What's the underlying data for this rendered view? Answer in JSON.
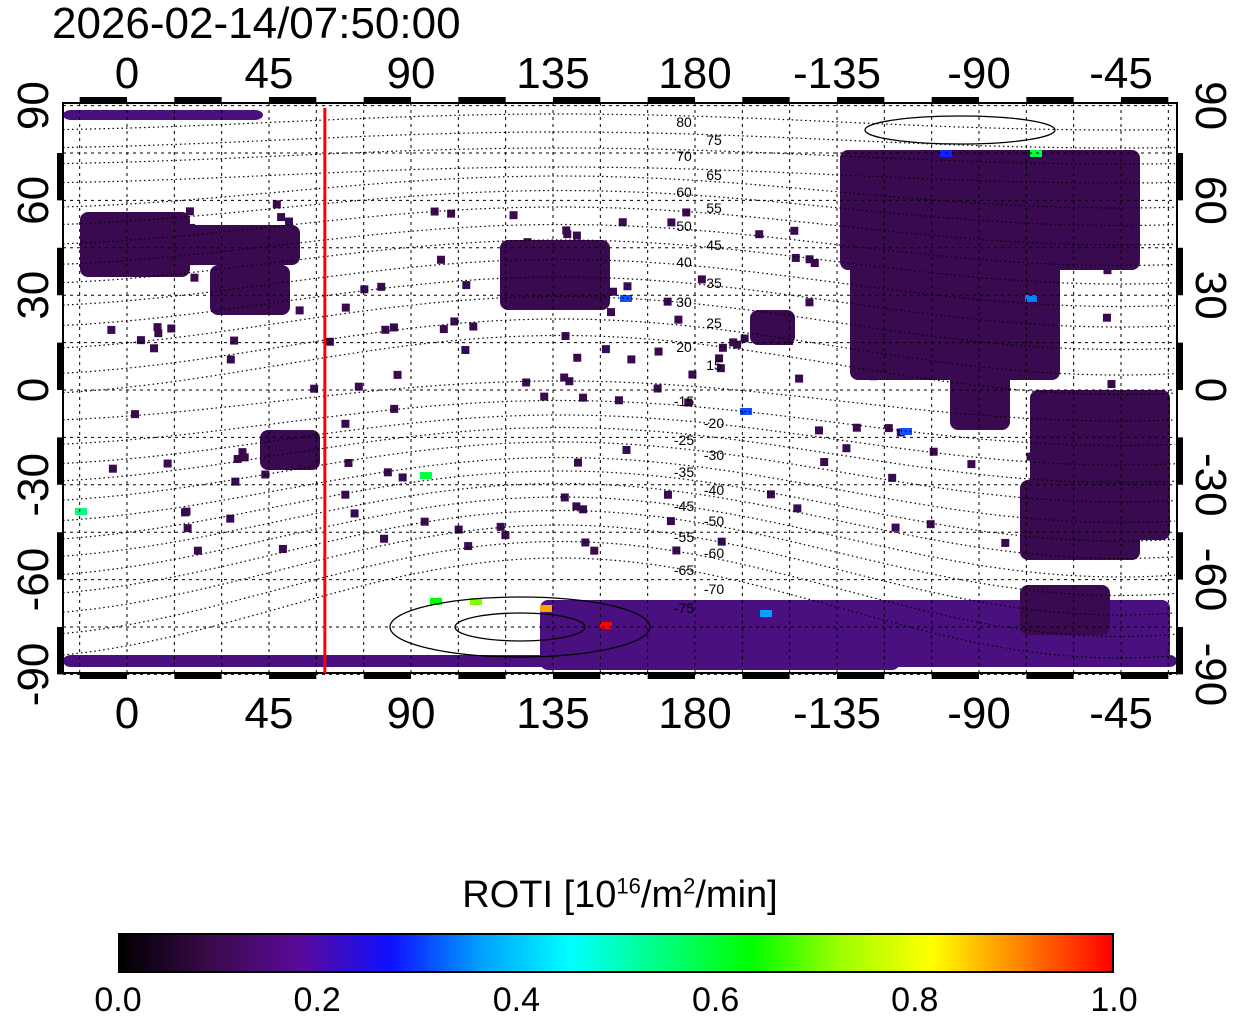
{
  "title": "2026-02-14/07:50:00",
  "map": {
    "top_lon_ticks": [
      "0",
      "45",
      "90",
      "135",
      "180",
      "-135",
      "-90",
      "-45"
    ],
    "bottom_lon_ticks": [
      "0",
      "45",
      "90",
      "135",
      "180",
      "-135",
      "-90",
      "-45"
    ],
    "left_lat_ticks": [
      "90",
      "60",
      "30",
      "0",
      "-30",
      "-60",
      "-90"
    ],
    "right_lat_ticks": [
      "90",
      "60",
      "30",
      "0",
      "-30",
      "-60",
      "-90"
    ],
    "marker_line_lon": 62.7,
    "marker_line_color": "#ff0000",
    "contour_labels_north": [
      "80",
      "75",
      "70",
      "65",
      "60",
      "55",
      "50",
      "45",
      "40",
      "35",
      "30",
      "25",
      "20",
      "15"
    ],
    "contour_labels_south": [
      "-15",
      "-20",
      "-25",
      "-30",
      "-35",
      "-40",
      "-45",
      "-50",
      "-55",
      "-60",
      "-65",
      "-70",
      "-75"
    ]
  },
  "colorbar": {
    "title": "ROTI  [10",
    "title_exp1": "16",
    "title_mid": "/m",
    "title_exp2": "2",
    "title_end": "/min]",
    "ticks": [
      "0.0",
      "0.2",
      "0.4",
      "0.6",
      "0.8",
      "1.0"
    ],
    "range": [
      0.0,
      1.0
    ],
    "colors": [
      "#000000",
      "#3a0a4a",
      "#5a0a9a",
      "#1010ff",
      "#00a0ff",
      "#00ffff",
      "#00ff80",
      "#00ff00",
      "#a0ff00",
      "#ffff00",
      "#ff8000",
      "#ff0000"
    ]
  }
}
